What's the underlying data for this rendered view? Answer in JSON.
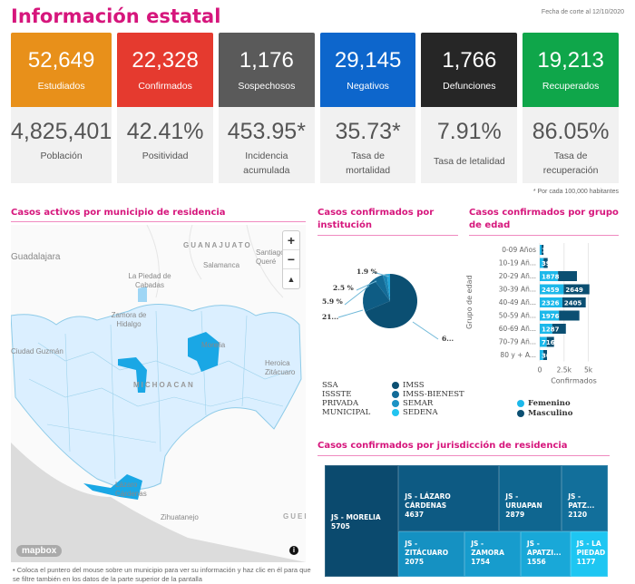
{
  "header": {
    "title": "Información estatal",
    "cutoff": "Fecha de corte al 12/10/2020"
  },
  "cards": [
    {
      "top_value": "52,649",
      "top_label": "Estudiados",
      "color": "#e8901a",
      "bottom_value": "4,825,401",
      "bottom_label": "Población"
    },
    {
      "top_value": "22,328",
      "top_label": "Confirmados",
      "color": "#e53a2f",
      "bottom_value": "42.41%",
      "bottom_label": "Positividad"
    },
    {
      "top_value": "1,176",
      "top_label": "Sospechosos",
      "color": "#5a5a5a",
      "bottom_value": "453.95*",
      "bottom_label": "Incidencia acumulada"
    },
    {
      "top_value": "29,145",
      "top_label": "Negativos",
      "color": "#0d66cc",
      "bottom_value": "35.73*",
      "bottom_label": "Tasa de mortalidad"
    },
    {
      "top_value": "1,766",
      "top_label": "Defunciones",
      "color": "#262626",
      "bottom_value": "7.91%",
      "bottom_label": "Tasa de letalidad"
    },
    {
      "top_value": "19,213",
      "top_label": "Recuperados",
      "color": "#0fa64a",
      "bottom_value": "86.05%",
      "bottom_label": "Tasa de recuperación"
    }
  ],
  "note": "* Por cada 100,000 habitantes",
  "map": {
    "title": "Casos activos por municipio de residencia",
    "labels": [
      "GUANAJUATO",
      "Guadalajara",
      "Salamanca",
      "Santiago Queré",
      "La Piedad de Cabadas",
      "Zamora de Hidalgo",
      "Morelia",
      "Heroica Zitácuaro",
      "Ciudad Guzmán",
      "MICHOACAN",
      "Lázaro Cárdenas",
      "Zihuatanejo",
      "GUER"
    ],
    "zoom_in": "+",
    "zoom_out": "−",
    "compass": "▲",
    "attribution": "mapbox",
    "info": "i",
    "hint": "Coloca el puntero del mouse sobre un municipio para ver su información y haz clic en él para que se filtre también en los datos de la parte superior de la pantalla"
  },
  "chart_data": [
    {
      "type": "pie",
      "title": "Casos confirmados por institución",
      "categories": [
        "IMSS",
        "SSA",
        "ISSSTE",
        "PRIVADA",
        "IMSS-BIENEST",
        "SEMAR",
        "MUNICIPAL",
        "SEDENA"
      ],
      "values": [
        68.7,
        21.0,
        5.9,
        2.5,
        1.9,
        0.0,
        0.0,
        0.0
      ],
      "data_labels": [
        "6...",
        "21...",
        "5.9 %",
        "2.5 %",
        "1.9 %"
      ],
      "colors": [
        "#0b4f72",
        "#0e5c84",
        "#136b97",
        "#1b84b3",
        "#22a3d6"
      ],
      "legend_left": [
        "SSA",
        "ISSSTE",
        "PRIVADA",
        "MUNICIPAL"
      ],
      "legend_right": [
        {
          "label": "IMSS",
          "color": "#0b4f72"
        },
        {
          "label": "IMSS-BIENEST",
          "color": "#136b97"
        },
        {
          "label": "SEMAR",
          "color": "#1c92c4"
        },
        {
          "label": "SEDENA",
          "color": "#22c4f0"
        }
      ]
    },
    {
      "type": "bar",
      "orientation": "horizontal",
      "stacked": true,
      "title": "Casos confirmados por grupo de edad",
      "categories": [
        "0-09 Años",
        "10-19 Añ...",
        "20-29 Añ...",
        "30-39 Añ...",
        "40-49 Añ...",
        "50-59 Añ...",
        "60-69 Añ...",
        "70-79 Añ...",
        "80 y + A..."
      ],
      "series": [
        {
          "name": "Femenino",
          "color": "#1cb8ea",
          "values": [
            190,
            392,
            1878,
            2459,
            2326,
            1976,
            1287,
            716,
            368
          ]
        },
        {
          "name": "Masculino",
          "color": "#0b4f72",
          "values": [
            199,
            420,
            1950,
            2649,
            2405,
            2100,
            1400,
            750,
            380
          ]
        }
      ],
      "xlabel": "Confirmados",
      "ylabel": "Grupo de edad",
      "xticks": [
        "0",
        "2.5k",
        "5k"
      ],
      "xlim": [
        0,
        7000
      ],
      "legend": "bottom"
    },
    {
      "type": "treemap",
      "title": "Casos confirmados por jurisdicción de residencia",
      "items": [
        {
          "label": "JS - MORELIA",
          "value": 5705,
          "color": "#0b4a6e"
        },
        {
          "label": "JS - LÁZARO CÁRDENAS",
          "value": 4637,
          "color": "#0d5a83"
        },
        {
          "label": "JS - URUAPAN",
          "value": 2879,
          "color": "#0f6690"
        },
        {
          "label": "JS - PATZ...",
          "value": 2120,
          "color": "#126f9b"
        },
        {
          "label": "JS - ZITÁCUARO",
          "value": 2075,
          "color": "#1591c2"
        },
        {
          "label": "JS - ZAMORA",
          "value": 1754,
          "color": "#179ccd"
        },
        {
          "label": "JS - APATZI...",
          "value": 1556,
          "color": "#19a8d8"
        },
        {
          "label": "JS - LA PIEDAD",
          "value": 1177,
          "color": "#1ec6f2"
        }
      ]
    }
  ],
  "sections": {
    "institution_title": "Casos confirmados por institución",
    "age_title": "Casos confirmados por grupo de edad",
    "jurisdiction_title": "Casos confirmados por jurisdicción de residencia"
  }
}
